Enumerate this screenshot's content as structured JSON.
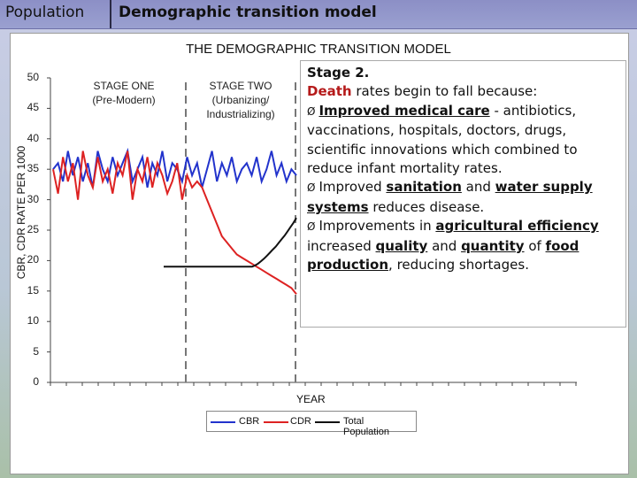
{
  "header": {
    "tab1": "Population",
    "tab2": "Demographic transition model"
  },
  "chart_data": {
    "type": "line",
    "title": "THE DEMOGRAPHIC TRANSITION MODEL",
    "xlabel": "YEAR",
    "ylabel": "CBR, CDR RATE PER 1000",
    "ylim": [
      0,
      50
    ],
    "yticks": [
      "50",
      "45",
      "40",
      "35",
      "30",
      "25",
      "20",
      "15",
      "10",
      "5",
      "0"
    ],
    "stages": [
      {
        "line1": "STAGE ONE",
        "line2": "(Pre-Modern)"
      },
      {
        "line1": "STAGE TWO",
        "line2": "(Urbanizing/",
        "line3": "Industrializing)"
      }
    ],
    "legend": [
      "CBR",
      "CDR",
      "Total Population"
    ],
    "series": [
      {
        "name": "CBR",
        "color": "#2233cc",
        "values": [
          35,
          36,
          33,
          38,
          34,
          37,
          33,
          36,
          32,
          38,
          35,
          33,
          37,
          34,
          36,
          38,
          33,
          35,
          37,
          32,
          36,
          34,
          38,
          33,
          36,
          35,
          33,
          37,
          34,
          36,
          32,
          35,
          38,
          33,
          36,
          34,
          37,
          33,
          35,
          36,
          34,
          37,
          33,
          35,
          38,
          34,
          36,
          33,
          35,
          34
        ]
      },
      {
        "name": "CDR",
        "color": "#dd2222",
        "values": [
          35,
          31,
          37,
          33,
          36,
          30,
          38,
          34,
          32,
          37,
          33,
          35,
          31,
          36,
          34,
          38,
          30,
          35,
          33,
          37,
          32,
          36,
          34,
          31,
          33,
          36,
          30,
          34,
          32,
          33,
          32,
          30,
          28,
          26,
          24,
          23,
          22,
          21,
          20.5,
          20,
          19.5,
          19,
          18.5,
          18,
          17.5,
          17,
          16.5,
          16,
          15.5,
          14.5
        ]
      },
      {
        "name": "Total Population",
        "color": "#111111",
        "values": [
          19,
          19,
          19,
          19,
          19,
          19,
          19,
          19,
          19,
          19,
          19,
          19,
          19,
          19,
          19,
          19,
          19,
          19,
          19,
          19,
          19,
          19,
          19,
          19,
          19,
          19,
          19,
          19,
          19,
          19,
          19,
          19.2,
          19.5,
          19.9,
          20.3,
          20.8,
          21.3,
          21.8,
          22.3,
          22.9,
          23.5,
          24.1,
          24.8,
          25.5,
          26.2,
          27
        ]
      }
    ]
  },
  "textbox": {
    "heading": "Stage 2.",
    "line1_death": "Death",
    "line1_rest": " rates begin to fall because:",
    "b1_arrow": "Ø",
    "b1_strong": "Improved medical care",
    "b1_dash": " -",
    "b1_text": "antibiotics, vaccinations, hospitals, doctors, drugs, scientific innovations which combined to reduce infant mortality rates.",
    "b2_arrow": "Ø",
    "b2_a": "Improved ",
    "b2_sanitation": "sanitation",
    "b2_and": " and ",
    "b2_water": "water supply systems",
    "b2_rest": " reduces disease.",
    "b3_arrow": "Ø",
    "b3_a": "Improvements in ",
    "b3_agri": "agricultural efficiency",
    "b3_b": " increased ",
    "b3_quality": "quality",
    "b3_and": " and ",
    "b3_quantity": "quantity",
    "b3_of": " of ",
    "b3_food": "food production",
    "b3_rest": ", reducing shortages."
  }
}
